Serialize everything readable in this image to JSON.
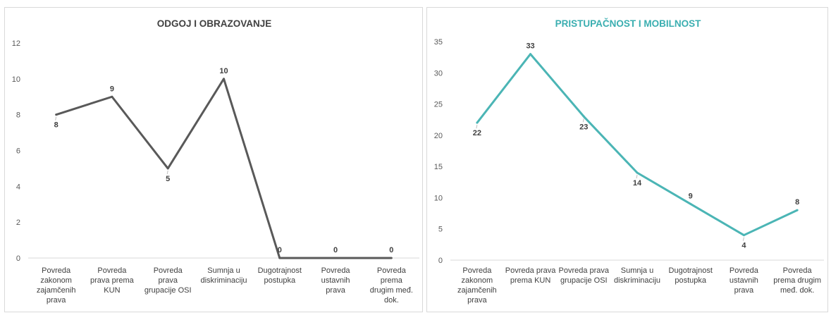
{
  "chart_data": [
    {
      "type": "line",
      "title": "ODGOJ I OBRAZOVANJE",
      "categories": [
        "Povreda zakonom zajamčenih prava",
        "Povreda prava prema KUN",
        "Povreda prava grupacije OSI",
        "Sumnja u diskriminaciju",
        "Dugotrajnost postupka",
        "Povreda ustavnih prava",
        "Povreda prema drugim međ. dok."
      ],
      "category_lines": [
        [
          "Povreda",
          "zakonom",
          "zajamčenih",
          "prava"
        ],
        [
          "Povreda",
          "prava prema",
          "KUN"
        ],
        [
          "Povreda",
          "prava",
          "grupacije OSI"
        ],
        [
          "Sumnja u",
          "diskriminaciju"
        ],
        [
          "Dugotrajnost",
          "postupka"
        ],
        [
          "Povreda",
          "ustavnih",
          "prava"
        ],
        [
          "Povreda",
          "prema",
          "drugim međ.",
          "dok."
        ]
      ],
      "values": [
        8,
        9,
        5,
        10,
        0,
        0,
        0
      ],
      "label_position": [
        "below",
        "above",
        "below",
        "above",
        "above",
        "above",
        "above"
      ],
      "ylim": [
        0,
        12
      ],
      "yticks": [
        0,
        2,
        4,
        6,
        8,
        10,
        12
      ],
      "grid": false,
      "legend": "none",
      "color": "#595959",
      "title_color": "#404040"
    },
    {
      "type": "line",
      "title": "PRISTUPAČNOST I MOBILNOST",
      "categories": [
        "Povreda zakonom zajamčenih prava",
        "Povreda prava prema KUN",
        "Povreda prava grupacije OSI",
        "Sumnja u diskriminaciju",
        "Dugotrajnost postupka",
        "Povreda ustavnih prava",
        "Povreda prema drugim međ. dok."
      ],
      "category_lines": [
        [
          "Povreda",
          "zakonom",
          "zajamčenih",
          "prava"
        ],
        [
          "Povreda prava",
          "prema KUN"
        ],
        [
          "Povreda prava",
          "grupacije OSI"
        ],
        [
          "Sumnja u",
          "diskriminaciju"
        ],
        [
          "Dugotrajnost",
          "postupka"
        ],
        [
          "Povreda",
          "ustavnih",
          "prava"
        ],
        [
          "Povreda",
          "prema drugim",
          "međ. dok."
        ]
      ],
      "values": [
        22,
        33,
        23,
        14,
        9,
        4,
        8
      ],
      "label_position": [
        "below",
        "above",
        "below",
        "below",
        "above",
        "below",
        "above"
      ],
      "ylim": [
        0,
        35
      ],
      "yticks": [
        0,
        5,
        10,
        15,
        20,
        25,
        30,
        35
      ],
      "grid": false,
      "legend": "none",
      "color": "#4bb5b5",
      "title_color": "#3aaeb0"
    }
  ]
}
